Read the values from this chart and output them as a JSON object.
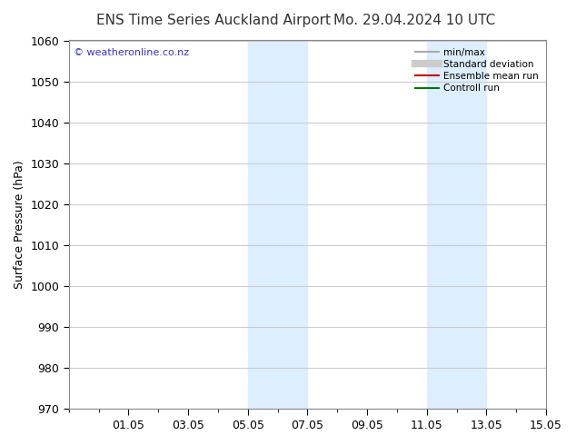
{
  "title": "ENS Time Series Auckland Airport",
  "title2": "Mo. 29.04.2024 10 UTC",
  "ylabel": "Surface Pressure (hPa)",
  "ylim": [
    970,
    1060
  ],
  "yticks": [
    970,
    980,
    990,
    1000,
    1010,
    1020,
    1030,
    1040,
    1050,
    1060
  ],
  "xtick_labels": [
    "01.05",
    "03.05",
    "05.05",
    "07.05",
    "09.05",
    "11.05",
    "13.05",
    "15.05"
  ],
  "xtick_positions": [
    2,
    4,
    6,
    8,
    10,
    12,
    14,
    16
  ],
  "shaded_bands": [
    {
      "x_start": 6,
      "x_end": 8
    },
    {
      "x_start": 12,
      "x_end": 14
    }
  ],
  "shaded_color": "#ddeeff",
  "watermark_text": "© weatheronline.co.nz",
  "watermark_color": "#3333cc",
  "background_color": "#ffffff",
  "plot_bg_color": "#ffffff",
  "grid_color": "#cccccc",
  "legend_items": [
    {
      "label": "min/max",
      "color": "#aaaaaa",
      "lw": 1.5
    },
    {
      "label": "Standard deviation",
      "color": "#cccccc",
      "lw": 6
    },
    {
      "label": "Ensemble mean run",
      "color": "#cc0000",
      "lw": 1.5
    },
    {
      "label": "Controll run",
      "color": "#007700",
      "lw": 1.5
    }
  ],
  "figsize": [
    6.34,
    4.9
  ],
  "dpi": 100
}
